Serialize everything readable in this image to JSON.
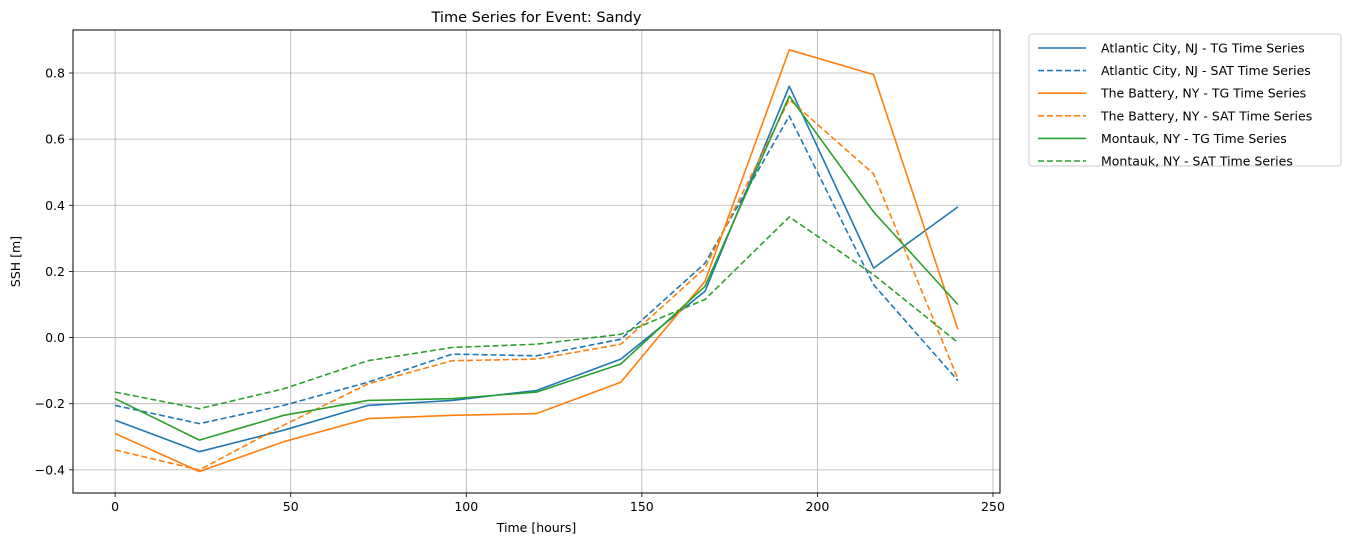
{
  "chart_data": {
    "type": "line",
    "title": "Time Series for Event: Sandy",
    "xlabel": "Time [hours]",
    "ylabel": "SSH [m]",
    "xlim": [
      -12,
      252
    ],
    "ylim": [
      -0.47,
      0.93
    ],
    "xticks": [
      0,
      50,
      100,
      150,
      200,
      250
    ],
    "yticks": [
      -0.4,
      -0.2,
      0.0,
      0.2,
      0.4,
      0.6,
      0.8
    ],
    "ytick_labels": [
      "−0.4",
      "−0.2",
      "0.0",
      "0.2",
      "0.4",
      "0.6",
      "0.8"
    ],
    "grid": true,
    "legend_position": "outside-top-right",
    "x": [
      0,
      24,
      48,
      72,
      96,
      120,
      144,
      168,
      192,
      216,
      240
    ],
    "series": [
      {
        "name": "Atlantic City, NJ - TG Time Series",
        "color": "#1f77b4",
        "dash": "solid",
        "values": [
          -0.25,
          -0.345,
          -0.28,
          -0.205,
          -0.19,
          -0.16,
          -0.065,
          0.14,
          0.76,
          0.21,
          0.395
        ]
      },
      {
        "name": "Atlantic City, NJ - SAT Time Series",
        "color": "#1f77b4",
        "dash": "dashed",
        "values": [
          -0.205,
          -0.26,
          -0.205,
          -0.135,
          -0.05,
          -0.055,
          -0.005,
          0.225,
          0.67,
          0.16,
          -0.13
        ]
      },
      {
        "name": "The Battery, NY - TG Time Series",
        "color": "#ff7f0e",
        "dash": "solid",
        "values": [
          -0.29,
          -0.405,
          -0.315,
          -0.245,
          -0.235,
          -0.23,
          -0.135,
          0.17,
          0.87,
          0.795,
          0.025
        ]
      },
      {
        "name": "The Battery, NY - SAT Time Series",
        "color": "#ff7f0e",
        "dash": "dashed",
        "values": [
          -0.34,
          -0.4,
          -0.265,
          -0.14,
          -0.07,
          -0.065,
          -0.02,
          0.21,
          0.72,
          0.495,
          -0.125
        ]
      },
      {
        "name": "Montauk, NY - TG Time Series",
        "color": "#2ca02c",
        "dash": "solid",
        "values": [
          -0.185,
          -0.31,
          -0.235,
          -0.19,
          -0.185,
          -0.165,
          -0.08,
          0.155,
          0.73,
          0.38,
          0.1
        ]
      },
      {
        "name": "Montauk, NY - SAT Time Series",
        "color": "#2ca02c",
        "dash": "dashed",
        "values": [
          -0.165,
          -0.215,
          -0.155,
          -0.07,
          -0.03,
          -0.02,
          0.01,
          0.115,
          0.365,
          0.19,
          -0.015
        ]
      }
    ]
  }
}
